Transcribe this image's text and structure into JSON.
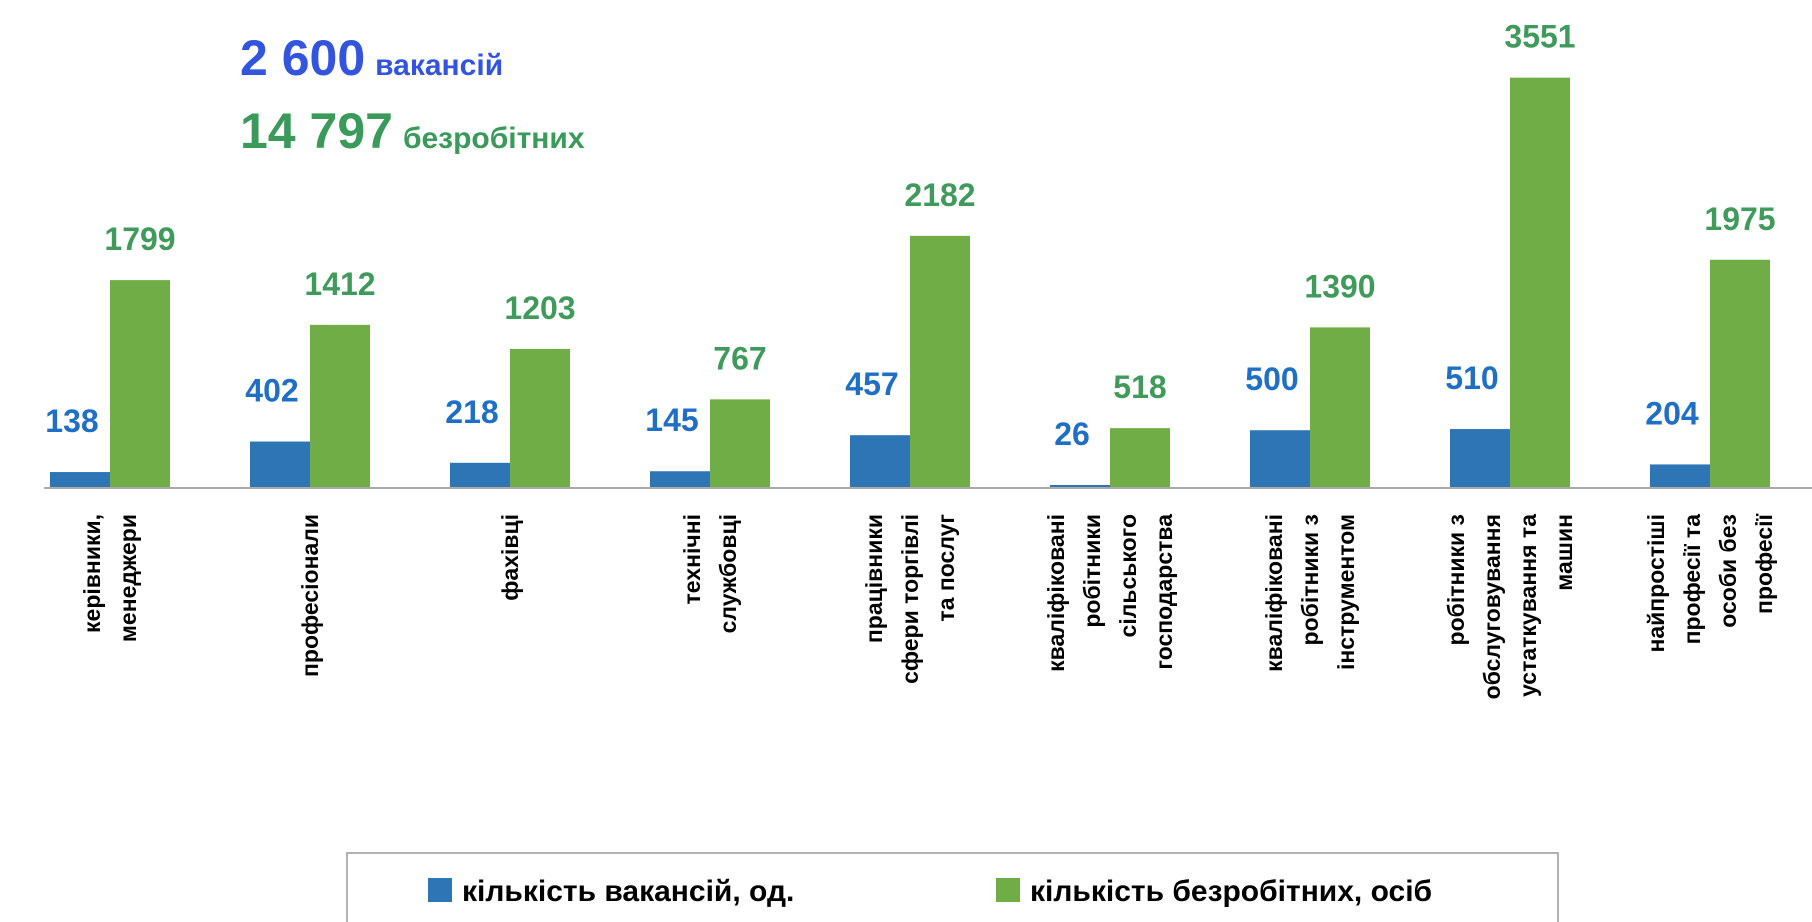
{
  "chart_data": {
    "type": "bar",
    "annotations": [
      {
        "number": "2 600",
        "text": "вакансій",
        "color": "#3355dd"
      },
      {
        "number": "14 797",
        "text": "безробітних",
        "color": "#3a9a5a"
      }
    ],
    "categories": [
      [
        "керівники,",
        "менеджери"
      ],
      [
        "професіонали"
      ],
      [
        "фахівці"
      ],
      [
        "технічні",
        "службовці"
      ],
      [
        "працівники",
        "сфери торгівлі",
        "та послуг"
      ],
      [
        "кваліфіковані",
        "робітники",
        "сільського",
        "господарства"
      ],
      [
        "кваліфіковані",
        "робітники з",
        "інструментом"
      ],
      [
        "робітники з",
        "обслуговування",
        "устаткування та",
        "машин"
      ],
      [
        "найпростіші",
        "професії та",
        "особи без",
        "професії"
      ]
    ],
    "series": [
      {
        "name": "кількість вакансій, од.",
        "color": "#2e75b6",
        "label_color": "#1f6fc5",
        "values": [
          138,
          402,
          218,
          145,
          457,
          26,
          500,
          510,
          204
        ]
      },
      {
        "name": "кількість безробітних, осіб",
        "color": "#70ad47",
        "label_color": "#3f9a5b",
        "values": [
          1799,
          1412,
          1203,
          767,
          2182,
          518,
          1390,
          3551,
          1975
        ]
      }
    ],
    "ylim": [
      0,
      3600
    ],
    "legend": "bottom"
  }
}
